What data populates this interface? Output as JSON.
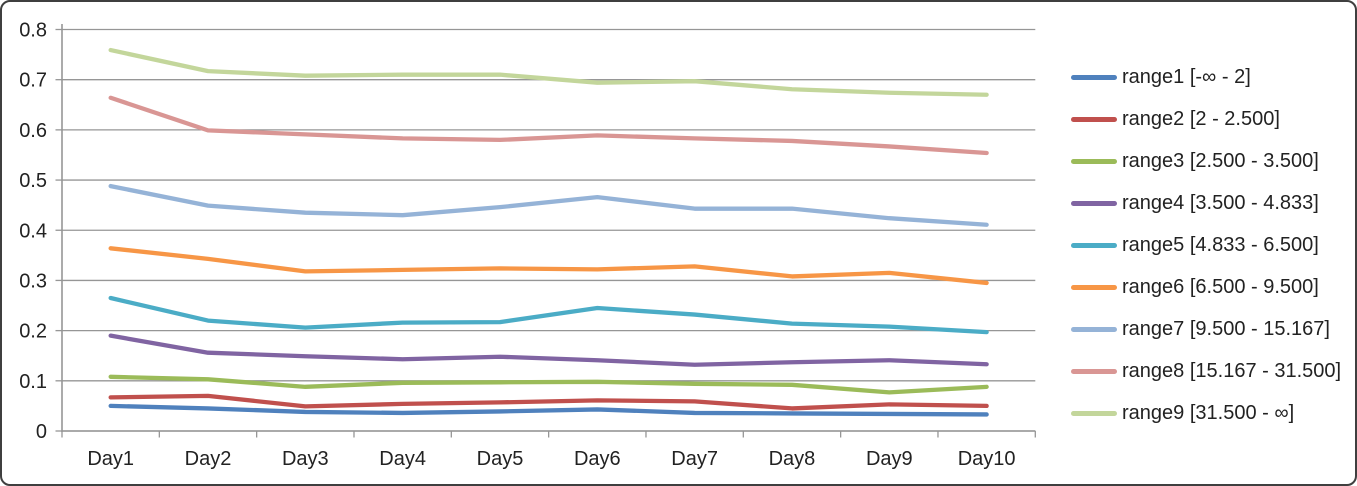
{
  "chart_data": {
    "type": "line",
    "title": "",
    "xlabel": "",
    "ylabel": "",
    "ylim": [
      0,
      0.8
    ],
    "grid": true,
    "legend_position": "right",
    "yticks": [
      "0",
      "0.1",
      "0.2",
      "0.3",
      "0.4",
      "0.5",
      "0.6",
      "0.7",
      "0.8"
    ],
    "categories": [
      "Day1",
      "Day2",
      "Day3",
      "Day4",
      "Day5",
      "Day6",
      "Day7",
      "Day8",
      "Day9",
      "Day10"
    ],
    "series": [
      {
        "name": "range1 [-∞ - 2]",
        "color": "#4F81BD",
        "values": [
          0.05,
          0.045,
          0.038,
          0.036,
          0.039,
          0.043,
          0.036,
          0.035,
          0.034,
          0.033
        ]
      },
      {
        "name": "range2 [2 - 2.500]",
        "color": "#C0504D",
        "values": [
          0.067,
          0.07,
          0.049,
          0.054,
          0.057,
          0.061,
          0.059,
          0.045,
          0.053,
          0.05
        ]
      },
      {
        "name": "range3 [2.500 - 3.500]",
        "color": "#9BBB59",
        "values": [
          0.108,
          0.103,
          0.088,
          0.096,
          0.097,
          0.098,
          0.094,
          0.092,
          0.077,
          0.088
        ]
      },
      {
        "name": "range4 [3.500 - 4.833]",
        "color": "#8064A2",
        "values": [
          0.19,
          0.156,
          0.149,
          0.143,
          0.148,
          0.141,
          0.132,
          0.137,
          0.141,
          0.133
        ]
      },
      {
        "name": "range5 [4.833 - 6.500]",
        "color": "#4BACC6",
        "values": [
          0.265,
          0.22,
          0.206,
          0.216,
          0.217,
          0.245,
          0.232,
          0.214,
          0.208,
          0.197
        ]
      },
      {
        "name": "range6 [6.500 - 9.500]",
        "color": "#F79646",
        "values": [
          0.364,
          0.343,
          0.318,
          0.321,
          0.324,
          0.322,
          0.328,
          0.308,
          0.315,
          0.295
        ]
      },
      {
        "name": "range7 [9.500 - 15.167]",
        "color": "#95B3D7",
        "values": [
          0.488,
          0.449,
          0.435,
          0.43,
          0.446,
          0.466,
          0.443,
          0.443,
          0.424,
          0.411
        ]
      },
      {
        "name": "range8 [15.167 - 31.500]",
        "color": "#D99694",
        "values": [
          0.664,
          0.599,
          0.591,
          0.583,
          0.58,
          0.589,
          0.583,
          0.578,
          0.567,
          0.554
        ]
      },
      {
        "name": "range9 [31.500 - ∞]",
        "color": "#C3D69B",
        "values": [
          0.759,
          0.717,
          0.708,
          0.71,
          0.71,
          0.694,
          0.697,
          0.681,
          0.674,
          0.67
        ]
      }
    ]
  }
}
